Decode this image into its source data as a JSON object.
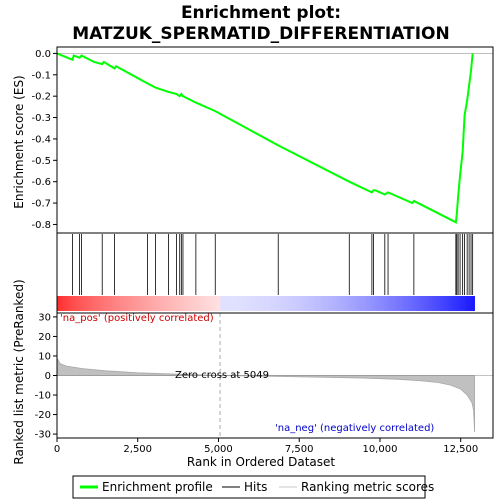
{
  "chart_data": {
    "type": "line",
    "title_line1": "Enrichment plot:",
    "title_line2": "MATZUK_SPERMATID_DIFFERENTIATION",
    "top_panel": {
      "ylabel": "Enrichment score (ES)",
      "ylim": [
        -0.84,
        0.03
      ],
      "yticks": [
        0.0,
        -0.1,
        -0.2,
        -0.3,
        -0.4,
        -0.5,
        -0.6,
        -0.7,
        -0.8
      ],
      "ytick_labels": [
        "0.0",
        "-0.1",
        "-0.2",
        "-0.3",
        "-0.4",
        "-0.5",
        "-0.6",
        "-0.7",
        "-0.8"
      ],
      "series_name": "Enrichment profile",
      "line_color": "#00ff00",
      "points": [
        [
          0,
          0.0
        ],
        [
          480,
          -0.03
        ],
        [
          520,
          -0.01
        ],
        [
          700,
          -0.02
        ],
        [
          760,
          -0.01
        ],
        [
          1150,
          -0.04
        ],
        [
          1400,
          -0.05
        ],
        [
          1450,
          -0.04
        ],
        [
          1780,
          -0.07
        ],
        [
          1830,
          -0.06
        ],
        [
          2800,
          -0.14
        ],
        [
          3050,
          -0.16
        ],
        [
          3450,
          -0.18
        ],
        [
          3700,
          -0.19
        ],
        [
          3800,
          -0.2
        ],
        [
          3850,
          -0.19
        ],
        [
          3900,
          -0.2
        ],
        [
          4300,
          -0.23
        ],
        [
          4900,
          -0.27
        ],
        [
          6850,
          -0.43
        ],
        [
          9050,
          -0.6
        ],
        [
          9750,
          -0.65
        ],
        [
          9800,
          -0.64
        ],
        [
          9850,
          -0.64
        ],
        [
          10150,
          -0.66
        ],
        [
          10250,
          -0.65
        ],
        [
          11000,
          -0.7
        ],
        [
          11050,
          -0.69
        ],
        [
          12350,
          -0.79
        ],
        [
          12380,
          -0.75
        ],
        [
          12420,
          -0.67
        ],
        [
          12480,
          -0.57
        ],
        [
          12560,
          -0.46
        ],
        [
          12620,
          -0.29
        ],
        [
          12700,
          -0.22
        ],
        [
          12760,
          -0.15
        ],
        [
          12820,
          -0.08
        ],
        [
          12870,
          0.0
        ]
      ]
    },
    "hits": [
      480,
      700,
      760,
      1400,
      1780,
      2800,
      3050,
      3450,
      3700,
      3800,
      3850,
      3900,
      4300,
      4900,
      6850,
      9050,
      9750,
      9800,
      10150,
      10250,
      11050,
      12350,
      12380,
      12420,
      12480,
      12560,
      12620,
      12700,
      12760,
      12820,
      12870
    ],
    "bottom_panel": {
      "ylabel": "Ranked list metric (PreRanked)",
      "xlabel": "Rank in Ordered Dataset",
      "ylim": [
        -32,
        32
      ],
      "yticks": [
        30,
        20,
        10,
        0,
        -10,
        -20,
        -30
      ],
      "ytick_labels": [
        "30",
        "20",
        "10",
        "0",
        "-10",
        "-20",
        "-30"
      ],
      "xlim": [
        0,
        13500
      ],
      "xticks": [
        0,
        2500,
        5000,
        7500,
        10000,
        12500
      ],
      "xtick_labels": [
        "0",
        "2,500",
        "5,000",
        "7,500",
        "10,000",
        "12,500"
      ],
      "zero_cross": 5049,
      "zero_cross_label": "Zero cross at 5049",
      "pos_label": "'na_pos' (positively correlated)",
      "neg_label": "'na_neg' (negatively correlated)",
      "metric_curve": [
        [
          0,
          9.0
        ],
        [
          100,
          6.0
        ],
        [
          300,
          4.8
        ],
        [
          800,
          3.5
        ],
        [
          1500,
          2.4
        ],
        [
          2500,
          1.4
        ],
        [
          3500,
          0.8
        ],
        [
          4500,
          0.3
        ],
        [
          5049,
          0.0
        ],
        [
          6500,
          -0.4
        ],
        [
          8000,
          -0.8
        ],
        [
          9500,
          -1.3
        ],
        [
          10500,
          -1.9
        ],
        [
          11200,
          -2.6
        ],
        [
          11800,
          -3.6
        ],
        [
          12200,
          -5.0
        ],
        [
          12500,
          -7.0
        ],
        [
          12700,
          -10.0
        ],
        [
          12850,
          -14.0
        ],
        [
          12900,
          -18.0
        ],
        [
          12930,
          -29.0
        ]
      ]
    },
    "max_rank": 12930,
    "legend": {
      "entries": [
        "Enrichment profile",
        "Hits",
        "Ranking metric scores"
      ]
    }
  }
}
